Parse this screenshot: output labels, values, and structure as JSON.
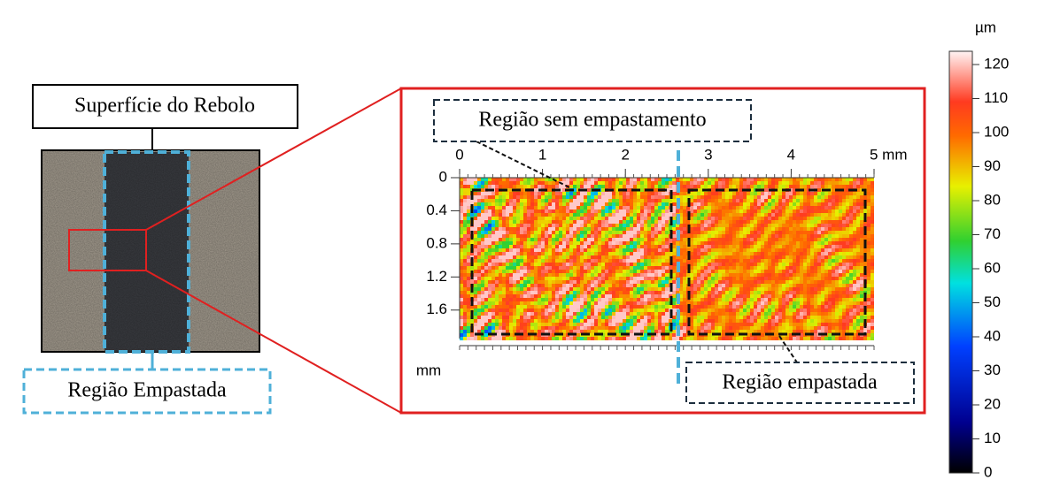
{
  "left_panel": {
    "surface_label": "Superfície do Rebolo",
    "region_label": "Região Empastada"
  },
  "surface_map": {
    "label_unpasted": "Região sem empastamento",
    "label_pasted": "Região empastada",
    "x_ticks": [
      0,
      1,
      2,
      3,
      4,
      {
        "value": 5,
        "label": "5 mm"
      }
    ],
    "y_ticks": [
      0,
      0.4,
      0.8,
      1.2,
      1.6
    ],
    "y_unit": "mm"
  },
  "colorbar": {
    "unit": "µm",
    "ticks": [
      0,
      10,
      20,
      30,
      40,
      50,
      60,
      70,
      80,
      90,
      100,
      110,
      120
    ]
  }
}
